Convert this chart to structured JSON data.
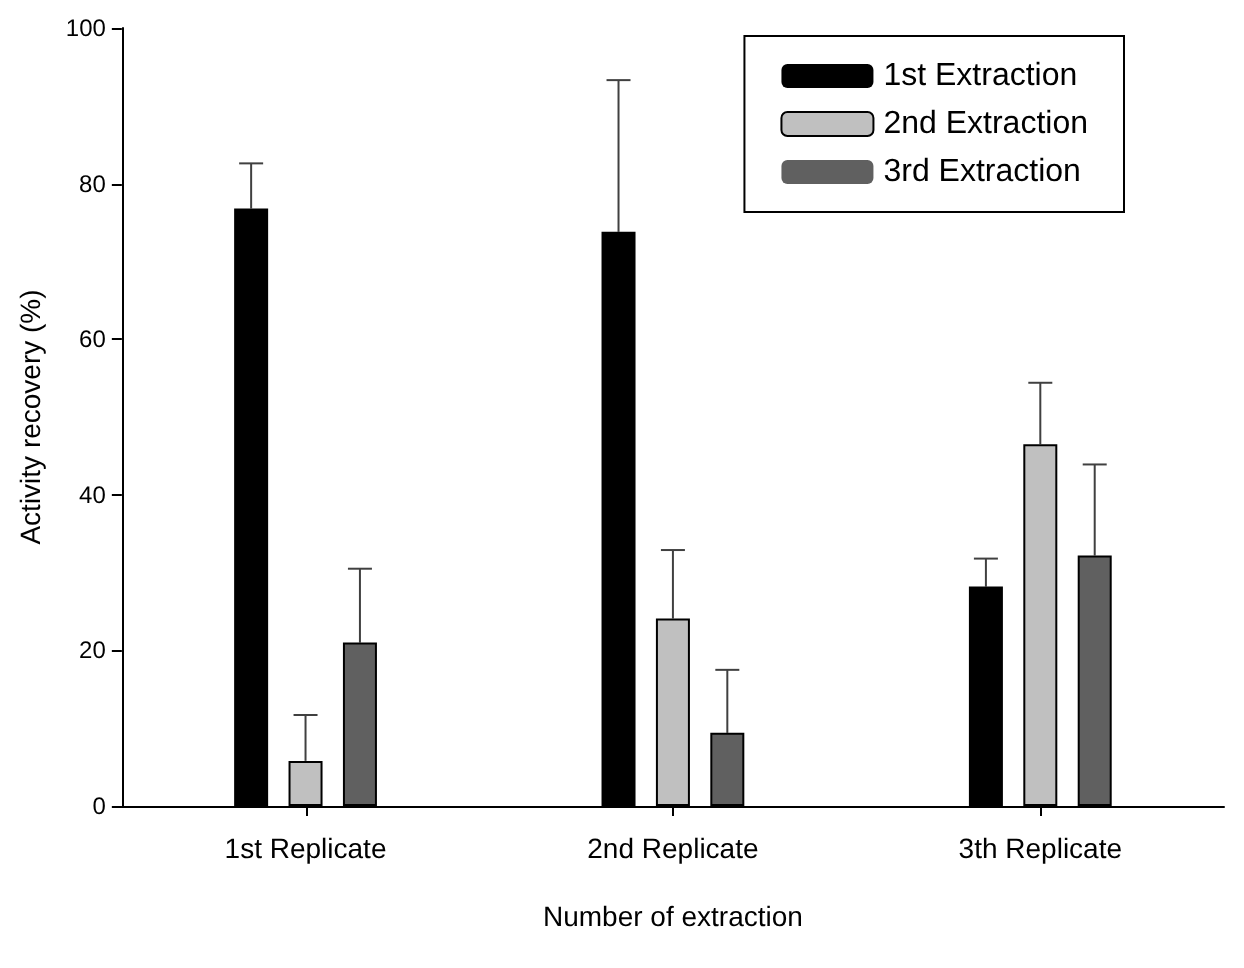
{
  "chart_data": {
    "type": "bar",
    "xlabel": "Number of extraction",
    "ylabel": "Activity recovery (%)",
    "categories": [
      "1st Replicate",
      "2nd Replicate",
      "3th Replicate"
    ],
    "series": [
      {
        "name": "1st Extraction",
        "color": "#000000",
        "values": [
          76.8,
          73.8,
          28.2
        ],
        "errors": [
          [
            76.8,
            82.6
          ],
          [
            73.8,
            93.3
          ],
          [
            28.2,
            31.8
          ]
        ]
      },
      {
        "name": "2nd Extraction",
        "color": "#c0c0c0",
        "values": [
          5.8,
          24.1,
          46.5
        ],
        "errors": [
          [
            5.8,
            11.7
          ],
          [
            24.1,
            32.9
          ],
          [
            46.5,
            54.4
          ]
        ]
      },
      {
        "name": "3rd Extraction",
        "color": "#606060",
        "values": [
          21.0,
          9.4,
          32.2
        ],
        "errors": [
          [
            21.0,
            30.5
          ],
          [
            9.4,
            17.5
          ],
          [
            32.2,
            43.9
          ]
        ]
      }
    ],
    "ylim": [
      0,
      100
    ],
    "yticks": [
      0,
      20,
      40,
      60,
      80,
      100
    ],
    "grid": false,
    "legend": "top right"
  }
}
